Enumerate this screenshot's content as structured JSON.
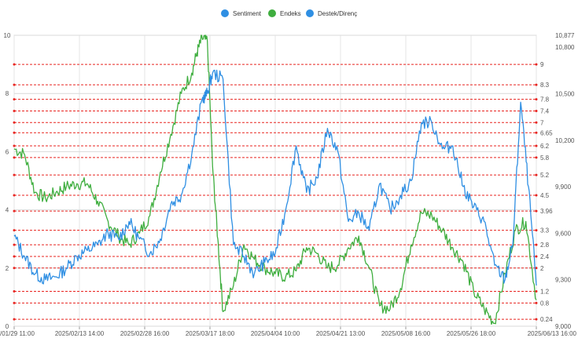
{
  "chart_data": {
    "type": "line",
    "legend": [
      {
        "name": "Sentiment",
        "color": "#2f8fe3"
      },
      {
        "name": "Endeks",
        "color": "#3fae3f"
      },
      {
        "name": "Destek/Direnç",
        "color": "#2f8fe3"
      }
    ],
    "legend_position": "top-center",
    "grid": true,
    "x_tick_labels": [
      "/01/29 11:00",
      "2025/02/13 14:00",
      "2025/02/28 16:00",
      "2025/03/17 18:00",
      "2025/04/04 10:00",
      "2025/04/21 13:00",
      "2025/05/08 16:00",
      "2025/05/26 18:00",
      "2025/06/13 16:00"
    ],
    "y_left": {
      "ylim": [
        0,
        10
      ],
      "ticks": [
        0,
        2,
        4,
        6,
        8,
        10
      ]
    },
    "y_right": {
      "ylim": [
        9000,
        10877
      ],
      "ticks": [
        "9,000",
        "9,300",
        "9,600",
        "9,900",
        "10,200",
        "10,500",
        "10,800",
        "10,877"
      ]
    },
    "support_resistance_levels": [
      "9",
      "8.3",
      "7.8",
      "7.4",
      "7",
      "6.65",
      "6.2",
      "5.8",
      "5.2",
      "4.5",
      "3.96",
      "3.3",
      "2.8",
      "2.4",
      "2",
      "1.2",
      "0.8",
      "0.24"
    ],
    "support_resistance_values": [
      9,
      8.3,
      7.8,
      7.4,
      7,
      6.65,
      6.2,
      5.8,
      5.2,
      4.5,
      3.96,
      3.3,
      2.8,
      2.4,
      2,
      1.2,
      0.8,
      0.24
    ],
    "sentiment_color": "#2f8fe3",
    "endeks_color": "#3fae3f",
    "level_color": "#e8231f",
    "series": [
      {
        "name": "Sentiment",
        "x": [
          0,
          0.02,
          0.04,
          0.06,
          0.08,
          0.1,
          0.12,
          0.14,
          0.16,
          0.18,
          0.2,
          0.22,
          0.24,
          0.26,
          0.28,
          0.3,
          0.32,
          0.34,
          0.36,
          0.37,
          0.38,
          0.4,
          0.42,
          0.44,
          0.46,
          0.48,
          0.5,
          0.52,
          0.54,
          0.56,
          0.58,
          0.6,
          0.62,
          0.64,
          0.66,
          0.68,
          0.7,
          0.72,
          0.74,
          0.76,
          0.78,
          0.8,
          0.82,
          0.84,
          0.86,
          0.88,
          0.9,
          0.92,
          0.94,
          0.955,
          0.97,
          0.985,
          1.0
        ],
        "y": [
          3.1,
          2.4,
          1.8,
          1.6,
          1.7,
          2.0,
          2.4,
          2.6,
          2.8,
          3.2,
          3.0,
          3.6,
          3.0,
          2.5,
          3.0,
          4.2,
          4.5,
          5.9,
          7.8,
          8.0,
          8.7,
          8.5,
          2.8,
          2.4,
          1.8,
          2.2,
          2.5,
          4.0,
          6.2,
          4.6,
          5.1,
          6.8,
          6.0,
          3.6,
          3.9,
          3.3,
          4.9,
          4.0,
          4.5,
          5.0,
          7.0,
          7.0,
          6.1,
          6.2,
          4.8,
          4.1,
          3.6,
          2.1,
          1.6,
          2.8,
          7.7,
          4.8,
          1.4
        ]
      },
      {
        "name": "Endeks",
        "x": [
          0,
          0.02,
          0.04,
          0.06,
          0.08,
          0.1,
          0.12,
          0.14,
          0.16,
          0.18,
          0.2,
          0.22,
          0.24,
          0.26,
          0.28,
          0.3,
          0.32,
          0.34,
          0.35,
          0.36,
          0.37,
          0.38,
          0.39,
          0.4,
          0.42,
          0.44,
          0.46,
          0.48,
          0.5,
          0.52,
          0.54,
          0.56,
          0.58,
          0.6,
          0.62,
          0.64,
          0.66,
          0.68,
          0.7,
          0.72,
          0.74,
          0.76,
          0.78,
          0.8,
          0.82,
          0.84,
          0.86,
          0.88,
          0.9,
          0.92,
          0.94,
          0.96,
          0.98,
          1.0
        ],
        "y": [
          6.1,
          5.9,
          4.6,
          4.4,
          4.6,
          4.8,
          4.9,
          4.9,
          4.3,
          3.6,
          3.1,
          2.8,
          3.2,
          3.8,
          5.3,
          6.6,
          8.0,
          8.7,
          9.4,
          9.9,
          9.8,
          5.5,
          3.0,
          0.5,
          1.4,
          2.8,
          2.3,
          2.0,
          1.8,
          1.7,
          1.9,
          2.7,
          2.5,
          2.0,
          2.1,
          2.7,
          3.1,
          2.0,
          0.7,
          0.6,
          1.3,
          2.8,
          3.9,
          3.8,
          3.3,
          2.7,
          2.2,
          1.2,
          0.6,
          0.1,
          1.8,
          3.3,
          3.6,
          0.9
        ]
      }
    ]
  }
}
